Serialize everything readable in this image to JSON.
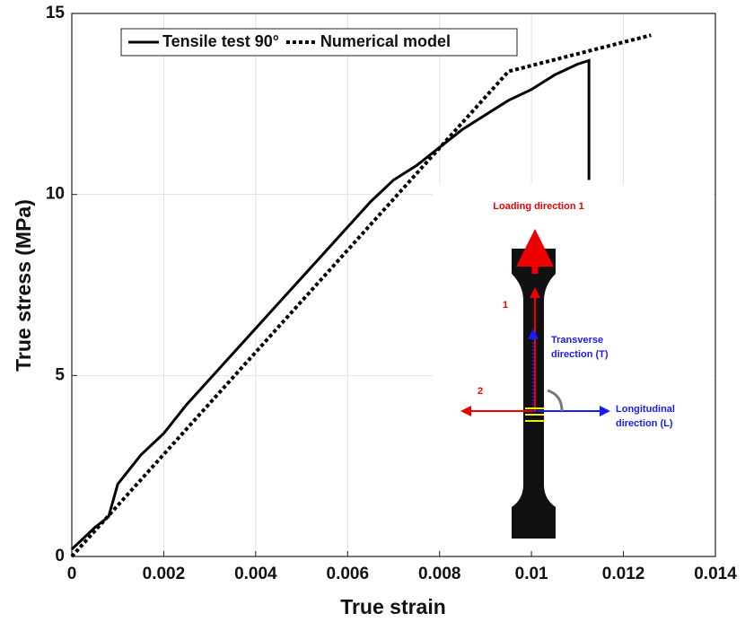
{
  "chart_data": {
    "type": "line",
    "x_label": "True strain",
    "y_label": "True stress (MPa)",
    "xlim": [
      0,
      0.014
    ],
    "ylim": [
      0,
      15
    ],
    "xticks": [
      0,
      0.002,
      0.004,
      0.006,
      0.008,
      0.01,
      0.012,
      0.014
    ],
    "yticks": [
      0,
      5,
      10,
      15
    ],
    "grid": true,
    "series": [
      {
        "name": "Tensile test 90°",
        "color": "#000000",
        "style": "solid",
        "x": [
          0,
          0.0005,
          0.0008,
          0.001,
          0.0015,
          0.002,
          0.0025,
          0.003,
          0.0035,
          0.004,
          0.0045,
          0.005,
          0.0055,
          0.006,
          0.0065,
          0.007,
          0.0075,
          0.008,
          0.0085,
          0.009,
          0.0095,
          0.01,
          0.0105,
          0.011,
          0.01125,
          0.01125
        ],
        "values": [
          0.2,
          0.8,
          1.1,
          2.0,
          2.8,
          3.4,
          4.2,
          4.9,
          5.6,
          6.3,
          7.0,
          7.7,
          8.4,
          9.1,
          9.8,
          10.4,
          10.8,
          11.3,
          11.8,
          12.2,
          12.6,
          12.9,
          13.3,
          13.6,
          13.7,
          10.4
        ]
      },
      {
        "name": "Numerical model",
        "color": "#000000",
        "style": "dotted",
        "x": [
          0,
          0.0095,
          0.0126
        ],
        "values": [
          0,
          13.4,
          14.4
        ]
      }
    ],
    "inset": {
      "loading_label": "Loading direction 1",
      "label_1": "1",
      "label_2": "2",
      "transverse_label": [
        "Transverse",
        "direction (T)"
      ],
      "longitudinal_label": [
        "Longitudinal",
        "direction (L)"
      ]
    }
  }
}
